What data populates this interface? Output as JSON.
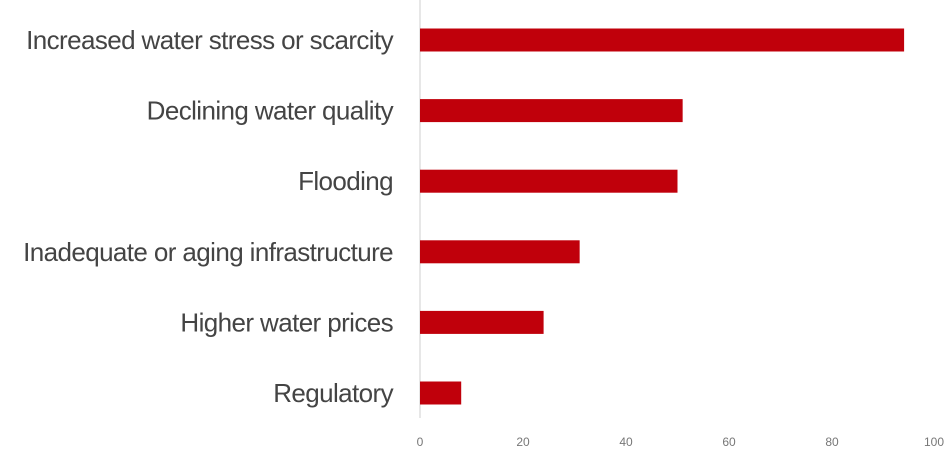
{
  "chart_data": {
    "type": "bar",
    "orientation": "horizontal",
    "categories": [
      "Increased water stress or scarcity",
      "Declining water quality",
      "Flooding",
      "Inadequate or aging infrastructure",
      "Higher water prices",
      "Regulatory"
    ],
    "values": [
      94,
      51,
      50,
      31,
      24,
      8
    ],
    "xlim": [
      0,
      100
    ],
    "x_ticks": [
      0,
      20,
      40,
      60,
      80,
      100
    ],
    "x_tick_labels": [
      "0",
      "20",
      "40",
      "60",
      "80",
      "100"
    ],
    "bar_color": "#c0000b",
    "grid": false,
    "legend": "none"
  }
}
